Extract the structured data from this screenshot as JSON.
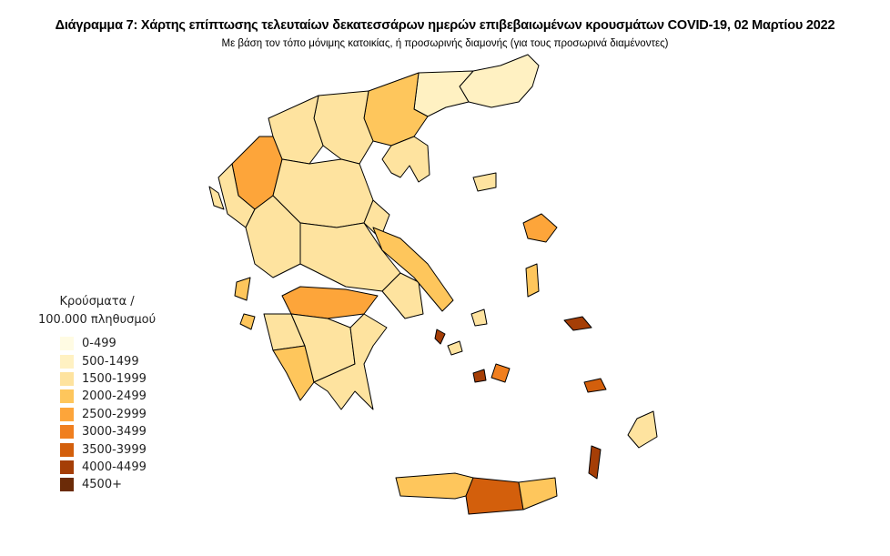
{
  "title": "Διάγραμμα 7: Χάρτης επίπτωσης τελευταίων δεκατεσσάρων ημερών επιβεβαιωμένων κρουσμάτων COVID-19, 02 Μαρτίου 2022",
  "subtitle": "Με βάση τον τόπο μόνιμης κατοικίας, ή προσωρινής διαμονής (για τους προσωρινά διαμένοντες)",
  "legend": {
    "title_line1": "Κρούσματα /",
    "title_line2": "100.000 πληθυσμού",
    "items": [
      {
        "label": "0-499",
        "color": "#fffbe3"
      },
      {
        "label": "500-1499",
        "color": "#fff1c2"
      },
      {
        "label": "1500-1999",
        "color": "#fee39f"
      },
      {
        "label": "2000-2499",
        "color": "#fec65c"
      },
      {
        "label": "2500-2999",
        "color": "#fda53a"
      },
      {
        "label": "3000-3499",
        "color": "#f07f1f"
      },
      {
        "label": "3500-3999",
        "color": "#d35f0c"
      },
      {
        "label": "4000-4499",
        "color": "#a53e06"
      },
      {
        "label": "4500+",
        "color": "#6b2b08"
      }
    ]
  },
  "map_regions": {
    "thrace": 1,
    "east-macedonia": 1,
    "central-macedonia-east": 3,
    "chalkidiki": 2,
    "central-macedonia-west": 2,
    "west-macedonia": 2,
    "ioannina": 4,
    "thesprotia-preveza": 2,
    "thessaly": 2,
    "magnesia": 2,
    "aitoloakarnania": 2,
    "central-greece": 2,
    "attica": 2,
    "evia": 3,
    "achaia-korinthia": 4,
    "ilia": 2,
    "messinia": 3,
    "arkadia": 2,
    "lakonia-argolida": 2,
    "corfu": 2,
    "kefalonia": 3,
    "zakynthos": 3,
    "lesvos": 4,
    "chios": 3,
    "samos": 7,
    "lemnos": 2,
    "crete-west": 3,
    "heraklion": 6,
    "crete-east": 3,
    "rhodes": 2,
    "naxos": 5,
    "paros": 7,
    "kos": 6,
    "karpathos": 7,
    "andros": 2,
    "skyros": 2,
    "amorgos": 7
  }
}
